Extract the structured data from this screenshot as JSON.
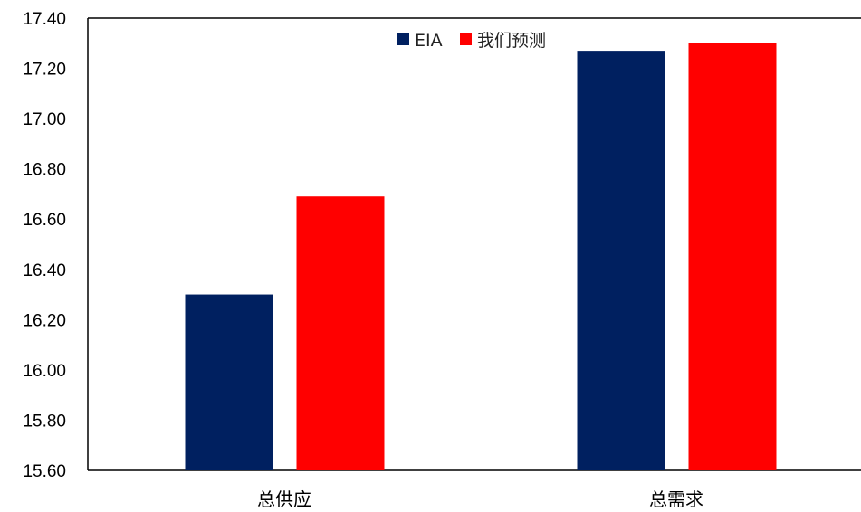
{
  "chart_data": {
    "type": "bar",
    "categories": [
      "总供应",
      "总需求"
    ],
    "series": [
      {
        "name": "EIA",
        "values": [
          16.3,
          17.27
        ],
        "color": "#002060"
      },
      {
        "name": "我们预测",
        "values": [
          16.69,
          17.3
        ],
        "color": "#ff0000"
      }
    ],
    "ylim": [
      15.6,
      17.4
    ],
    "yticks": [
      "15.60",
      "15.80",
      "16.00",
      "16.20",
      "16.40",
      "16.60",
      "16.80",
      "17.00",
      "17.20",
      "17.40"
    ],
    "legend_position": "top-center",
    "grid": false,
    "title": "",
    "xlabel": "",
    "ylabel": ""
  }
}
